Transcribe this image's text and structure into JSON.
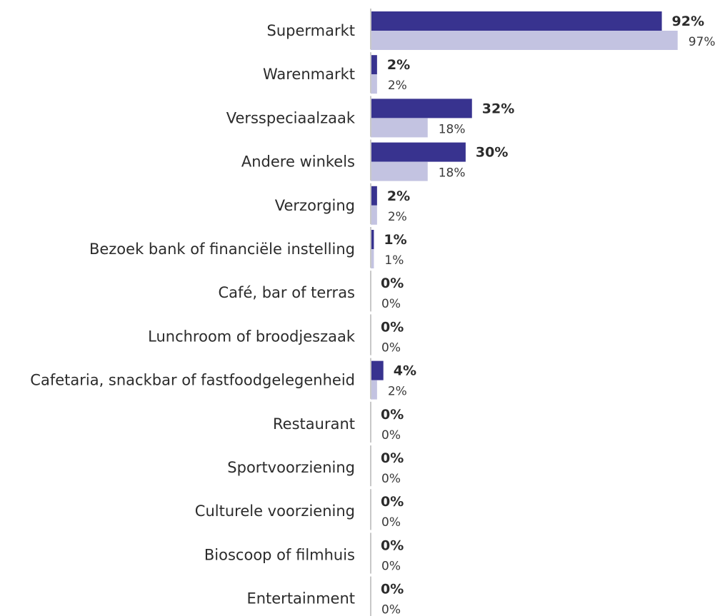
{
  "chart_data": {
    "type": "bar",
    "orientation": "horizontal",
    "grid": false,
    "legend": "none",
    "categories": [
      "Supermarkt",
      "Warenmarkt",
      "Versspeciaalzaak",
      "Andere winkels",
      "Verzorging",
      "Bezoek bank of financiële instelling",
      "Café, bar of terras",
      "Lunchroom of broodjeszaak",
      "Cafetaria, snackbar of fastfoodgelegenheid",
      "Restaurant",
      "Sportvoorziening",
      "Culturele voorziening",
      "Bioscoop of filmhuis",
      "Entertainment"
    ],
    "series": [
      {
        "color": "#38338f",
        "values": [
          92,
          2,
          32,
          30,
          2,
          1,
          0,
          0,
          4,
          0,
          0,
          0,
          0,
          0
        ],
        "labels": [
          "92%",
          "2%",
          "32%",
          "30%",
          "2%",
          "1%",
          "0%",
          "0%",
          "4%",
          "0%",
          "0%",
          "0%",
          "0%",
          "0%"
        ]
      },
      {
        "color": "#c3c3e1",
        "values": [
          97,
          2,
          18,
          18,
          2,
          1,
          0,
          0,
          2,
          0,
          0,
          0,
          0,
          0
        ],
        "labels": [
          "97%",
          "2%",
          "18%",
          "18%",
          "2%",
          "1%",
          "0%",
          "0%",
          "2%",
          "0%",
          "0%",
          "0%",
          "0%",
          "0%"
        ]
      }
    ],
    "xlim": [
      0,
      100
    ],
    "axis_color": "#c8c8c8"
  }
}
